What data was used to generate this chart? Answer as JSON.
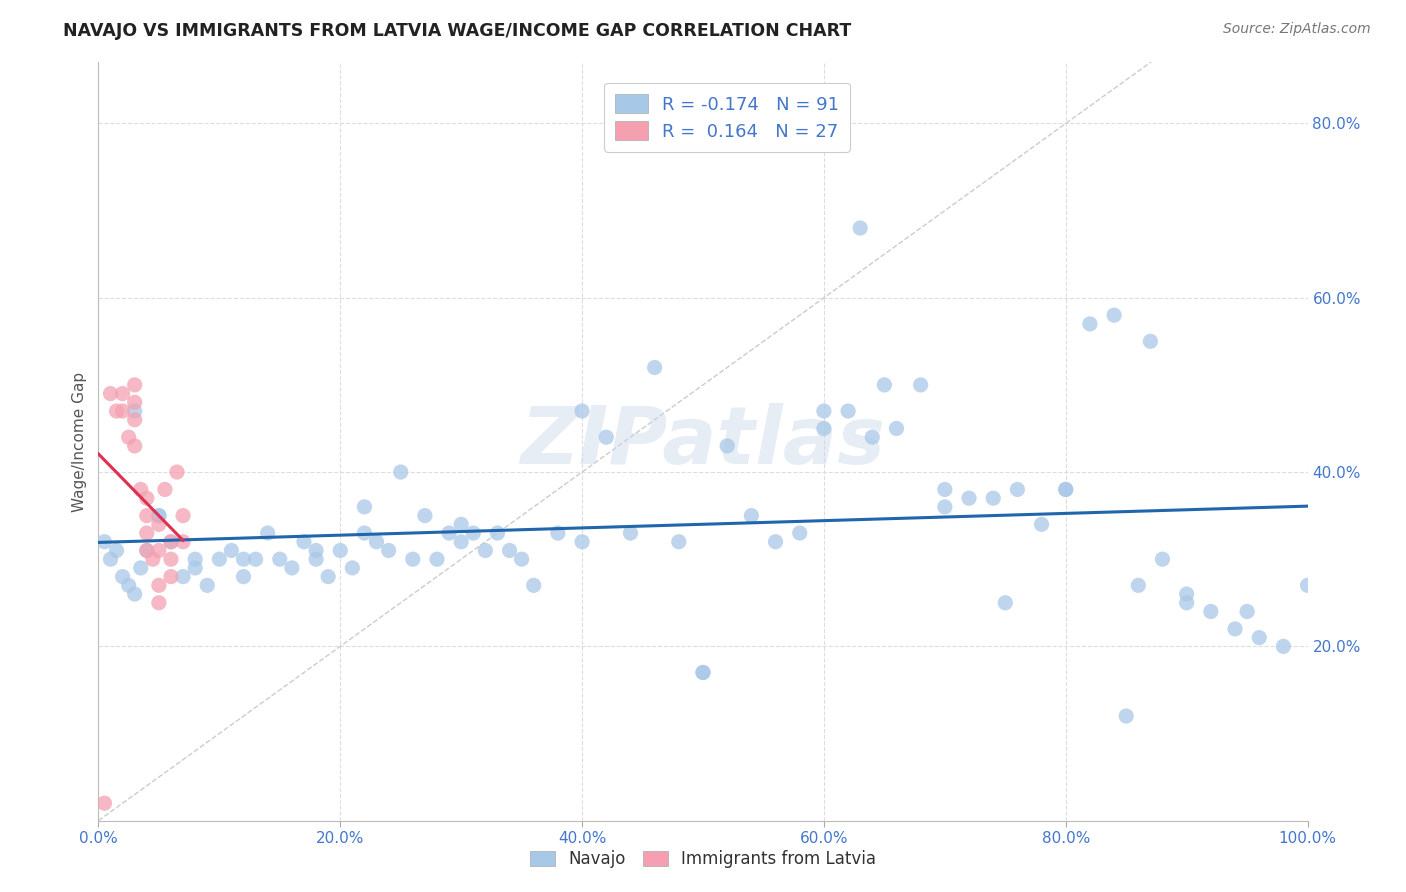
{
  "title": "NAVAJO VS IMMIGRANTS FROM LATVIA WAGE/INCOME GAP CORRELATION CHART",
  "source": "Source: ZipAtlas.com",
  "ylabel": "Wage/Income Gap",
  "legend_navajo_r": "-0.174",
  "legend_navajo_n": "91",
  "legend_latvia_r": "0.164",
  "legend_latvia_n": "27",
  "navajo_color": "#a8c8e8",
  "latvia_color": "#f4a0b0",
  "navajo_line_color": "#2166ac",
  "latvia_line_color": "#e03050",
  "diagonal_color": "#cccccc",
  "background_color": "#ffffff",
  "grid_color": "#dddddd",
  "tick_color": "#4477cc",
  "watermark": "ZIPatlas",
  "xlim": [
    0.0,
    1.0
  ],
  "ylim": [
    0.0,
    0.87
  ],
  "xticks": [
    0.0,
    0.2,
    0.4,
    0.6,
    0.8,
    1.0
  ],
  "yticks": [
    0.2,
    0.4,
    0.6,
    0.8
  ],
  "xticklabels": [
    "0.0%",
    "20.0%",
    "40.0%",
    "60.0%",
    "80.0%",
    "100.0%"
  ],
  "yticklabels": [
    "20.0%",
    "40.0%",
    "60.0%",
    "80.0%"
  ],
  "navajo_x": [
    0.005,
    0.01,
    0.015,
    0.02,
    0.025,
    0.03,
    0.035,
    0.04,
    0.05,
    0.06,
    0.07,
    0.08,
    0.09,
    0.1,
    0.11,
    0.12,
    0.13,
    0.14,
    0.15,
    0.16,
    0.17,
    0.18,
    0.19,
    0.2,
    0.21,
    0.22,
    0.23,
    0.24,
    0.25,
    0.26,
    0.27,
    0.28,
    0.29,
    0.3,
    0.31,
    0.32,
    0.33,
    0.34,
    0.35,
    0.36,
    0.38,
    0.4,
    0.42,
    0.44,
    0.46,
    0.48,
    0.5,
    0.52,
    0.54,
    0.56,
    0.58,
    0.6,
    0.62,
    0.64,
    0.66,
    0.68,
    0.7,
    0.72,
    0.74,
    0.76,
    0.78,
    0.8,
    0.82,
    0.84,
    0.86,
    0.88,
    0.9,
    0.92,
    0.94,
    0.96,
    0.98,
    1.0,
    0.03,
    0.05,
    0.08,
    0.12,
    0.18,
    0.22,
    0.3,
    0.4,
    0.5,
    0.6,
    0.65,
    0.7,
    0.75,
    0.8,
    0.85,
    0.9,
    0.95,
    0.63,
    0.87
  ],
  "navajo_y": [
    0.32,
    0.3,
    0.31,
    0.28,
    0.27,
    0.26,
    0.29,
    0.31,
    0.35,
    0.32,
    0.28,
    0.29,
    0.27,
    0.3,
    0.31,
    0.28,
    0.3,
    0.33,
    0.3,
    0.29,
    0.32,
    0.3,
    0.28,
    0.31,
    0.29,
    0.36,
    0.32,
    0.31,
    0.4,
    0.3,
    0.35,
    0.3,
    0.33,
    0.34,
    0.33,
    0.31,
    0.33,
    0.31,
    0.3,
    0.27,
    0.33,
    0.47,
    0.44,
    0.33,
    0.52,
    0.32,
    0.17,
    0.43,
    0.35,
    0.32,
    0.33,
    0.45,
    0.47,
    0.44,
    0.45,
    0.5,
    0.38,
    0.37,
    0.37,
    0.38,
    0.34,
    0.38,
    0.57,
    0.58,
    0.27,
    0.3,
    0.26,
    0.24,
    0.22,
    0.21,
    0.2,
    0.27,
    0.47,
    0.35,
    0.3,
    0.3,
    0.31,
    0.33,
    0.32,
    0.32,
    0.17,
    0.47,
    0.5,
    0.36,
    0.25,
    0.38,
    0.12,
    0.25,
    0.24,
    0.68,
    0.55
  ],
  "latvia_x": [
    0.005,
    0.01,
    0.015,
    0.02,
    0.02,
    0.025,
    0.03,
    0.03,
    0.03,
    0.03,
    0.035,
    0.04,
    0.04,
    0.04,
    0.04,
    0.045,
    0.05,
    0.05,
    0.05,
    0.05,
    0.055,
    0.06,
    0.06,
    0.06,
    0.065,
    0.07,
    0.07
  ],
  "latvia_y": [
    0.02,
    0.49,
    0.47,
    0.49,
    0.47,
    0.44,
    0.5,
    0.48,
    0.46,
    0.43,
    0.38,
    0.37,
    0.35,
    0.33,
    0.31,
    0.3,
    0.34,
    0.31,
    0.27,
    0.25,
    0.38,
    0.32,
    0.3,
    0.28,
    0.4,
    0.35,
    0.32
  ]
}
